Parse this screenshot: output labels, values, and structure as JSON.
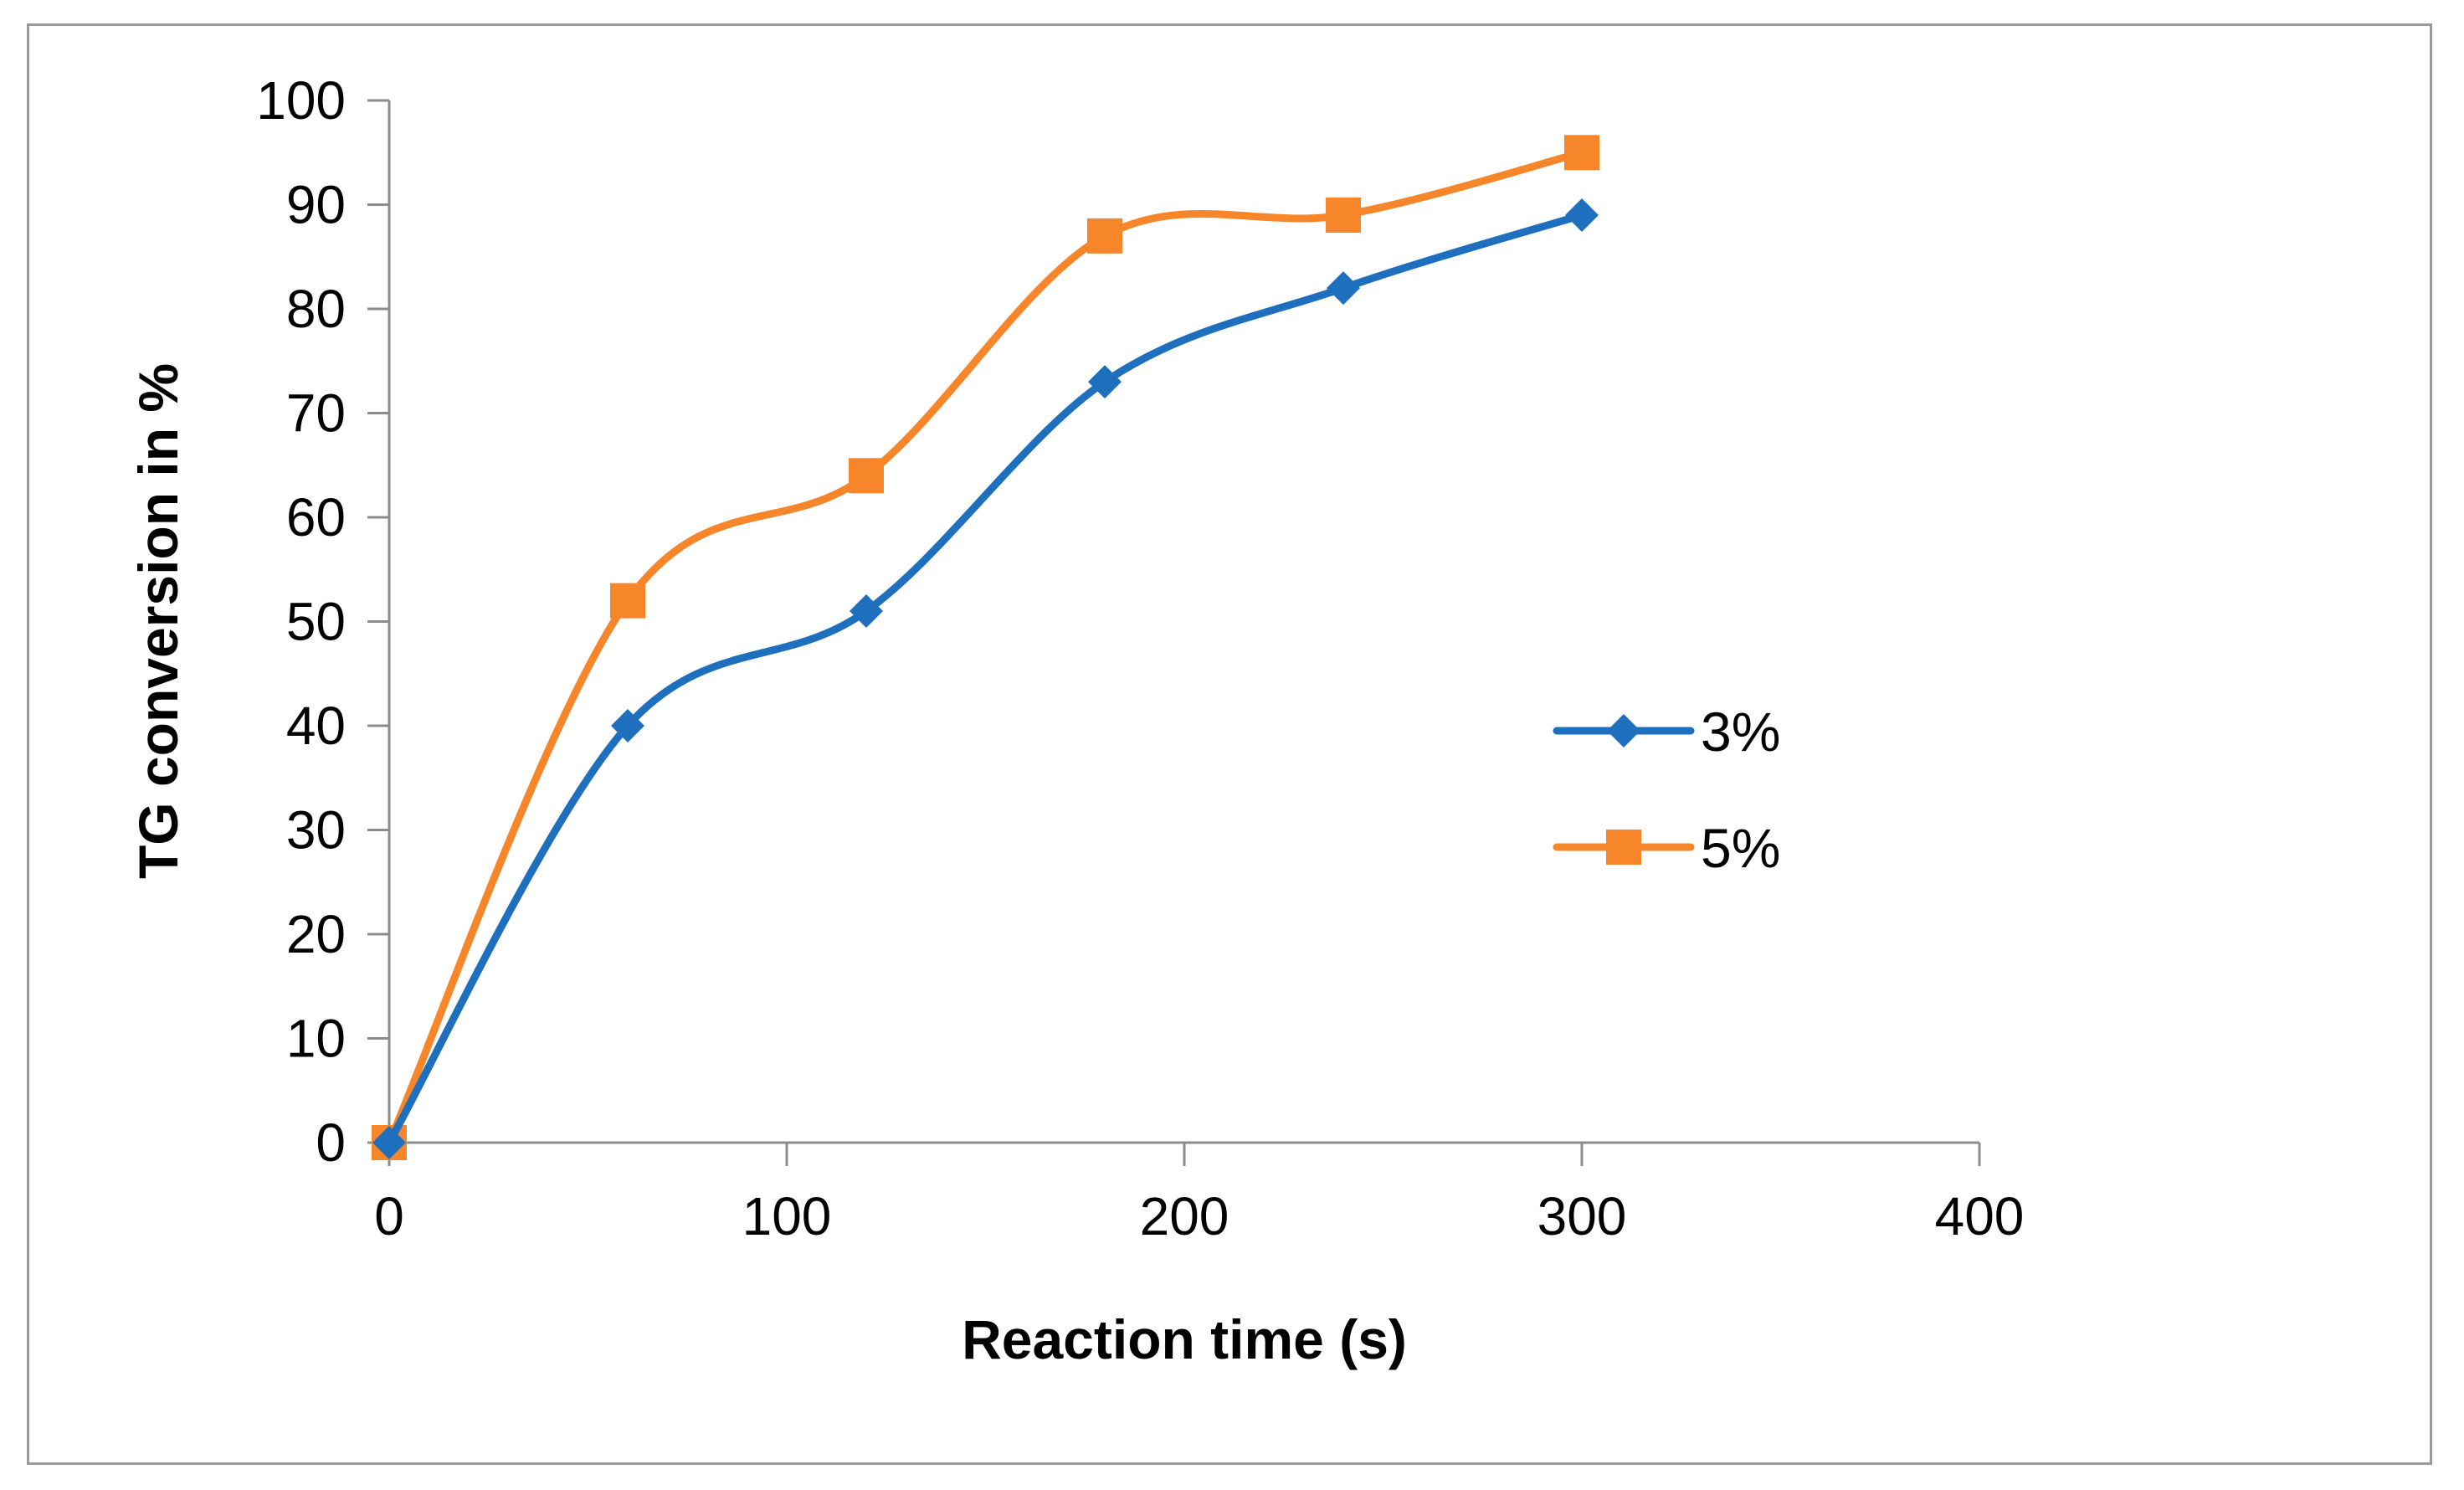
{
  "chart_data": {
    "type": "line",
    "title": "",
    "xlabel": "Reaction time (s)",
    "ylabel": "TG conversion in %",
    "xlim": [
      0,
      400
    ],
    "ylim": [
      0,
      100
    ],
    "x_ticks": [
      0,
      100,
      200,
      300,
      400
    ],
    "y_ticks": [
      0,
      10,
      20,
      30,
      40,
      50,
      60,
      70,
      80,
      90,
      100
    ],
    "x_tick_labels": [
      "0",
      "100",
      "200",
      "300",
      "400"
    ],
    "y_tick_labels": [
      "0",
      "10",
      "20",
      "30",
      "40",
      "50",
      "60",
      "70",
      "80",
      "90",
      "100"
    ],
    "grid": false,
    "smooth": true,
    "legend_position": "right",
    "series": [
      {
        "name": "3%",
        "color": "#1f6fbf",
        "marker": "diamond",
        "x": [
          0,
          60,
          120,
          180,
          240,
          300
        ],
        "y": [
          0,
          40,
          51,
          73,
          82,
          89
        ]
      },
      {
        "name": "5%",
        "color": "#f7862a",
        "marker": "square",
        "x": [
          0,
          60,
          120,
          180,
          240,
          300
        ],
        "y": [
          0,
          52,
          64,
          87,
          89,
          95
        ]
      }
    ]
  }
}
